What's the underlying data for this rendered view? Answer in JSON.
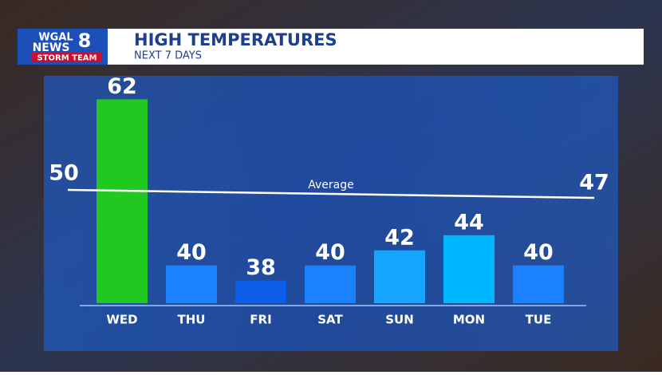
{
  "brand": {
    "station": "WGAL",
    "news": "NEWS",
    "channel": "8",
    "team": "STORM TEAM"
  },
  "chart_data": {
    "type": "bar",
    "title": "HIGH TEMPERATURES",
    "subtitle": "NEXT 7 DAYS",
    "categories": [
      "WED",
      "THU",
      "FRI",
      "SAT",
      "SUN",
      "MON",
      "TUE"
    ],
    "values": [
      62,
      40,
      38,
      40,
      42,
      44,
      40
    ],
    "colors": [
      "#21c81f",
      "#1a82ff",
      "#0c5ee6",
      "#1a82ff",
      "#16a6ff",
      "#00b6ff",
      "#1a82ff"
    ],
    "ylim": [
      35,
      63
    ],
    "average": {
      "label": "Average",
      "start": 50,
      "end": 47
    }
  }
}
